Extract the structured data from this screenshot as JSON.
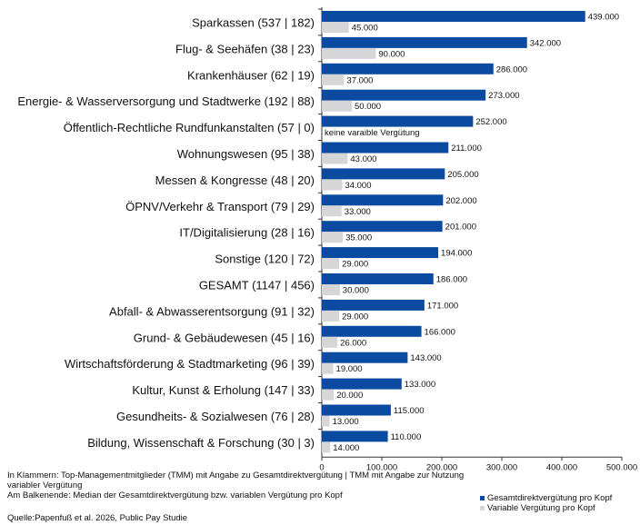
{
  "chart_data": {
    "type": "bar",
    "orientation": "horizontal",
    "categories": [
      "Sparkassen (537 | 182)",
      "Flug- & Seehäfen (38 | 23)",
      "Krankenhäuser (62 | 19)",
      "Energie- & Wasserversorgung und Stadtwerke  (192 | 88)",
      "Öffentlich-Rechtliche Rundfunkanstalten (57 | 0)",
      "Wohnungswesen (95 | 38)",
      "Messen & Kongresse (48 | 20)",
      "ÖPNV/Verkehr & Transport (79 | 29)",
      "IT/Digitalisierung (28 | 16)",
      "Sonstige (120 | 72)",
      "GESAMT (1147 | 456)",
      "Abfall- & Abwasserentsorgung (91 | 32)",
      "Grund- & Gebäudewesen (45 | 16)",
      "Wirtschaftsförderung & Stadtmarketing (96 | 39)",
      "Kultur, Kunst & Erholung (147 | 33)",
      "Gesundheits- & Sozialwesen (76 | 28)",
      "Bildung, Wissenschaft & Forschung (30 | 3)"
    ],
    "series": [
      {
        "name": "Gesamtdirektvergütung pro Kopf",
        "color": "#0a4aa0",
        "values": [
          439000,
          342000,
          286000,
          273000,
          252000,
          211000,
          205000,
          202000,
          201000,
          194000,
          186000,
          171000,
          166000,
          143000,
          133000,
          115000,
          110000
        ],
        "labels": [
          "439.000",
          "342.000",
          "286.000",
          "273.000",
          "252.000",
          "211.000",
          "205.000",
          "202.000",
          "201.000",
          "194.000",
          "186.000",
          "171.000",
          "166.000",
          "143.000",
          "133.000",
          "115.000",
          "110.000"
        ]
      },
      {
        "name": "Variable Vergütung pro Kopf",
        "color": "#d6d6d8",
        "values": [
          45000,
          90000,
          37000,
          50000,
          null,
          43000,
          34000,
          33000,
          35000,
          29000,
          30000,
          29000,
          26000,
          19000,
          20000,
          13000,
          14000
        ],
        "labels": [
          "45.000",
          "90.000",
          "37.000",
          "50.000",
          "keine varaible Vergütung",
          "43.000",
          "34.000",
          "33.000",
          "35.000",
          "29.000",
          "30.000",
          "29.000",
          "26.000",
          "19.000",
          "20.000",
          "13.000",
          "14.000"
        ]
      }
    ],
    "xlim": [
      0,
      500000
    ],
    "x_ticks": [
      0,
      100000,
      200000,
      300000,
      400000,
      500000
    ],
    "x_tick_labels": [
      "0",
      "100.000",
      "200.000",
      "300.000",
      "400.000",
      "500.000"
    ],
    "grid": false,
    "legend_position": "bottom-right"
  },
  "notes": {
    "line1": "In Klammern: Top-Managementmitglieder (TMM) mit Angabe zu Gesamtdirektvergütung | TMM mit Angabe zur Nutzung",
    "line2": "variabler Vergütung",
    "line3": "Am Balkenende: Median der Gesamtdirektvergütung bzw. variablen Vergütung pro Kopf"
  },
  "source": "Quelle:Papenfuß et al. 2026, Public Pay Studie"
}
